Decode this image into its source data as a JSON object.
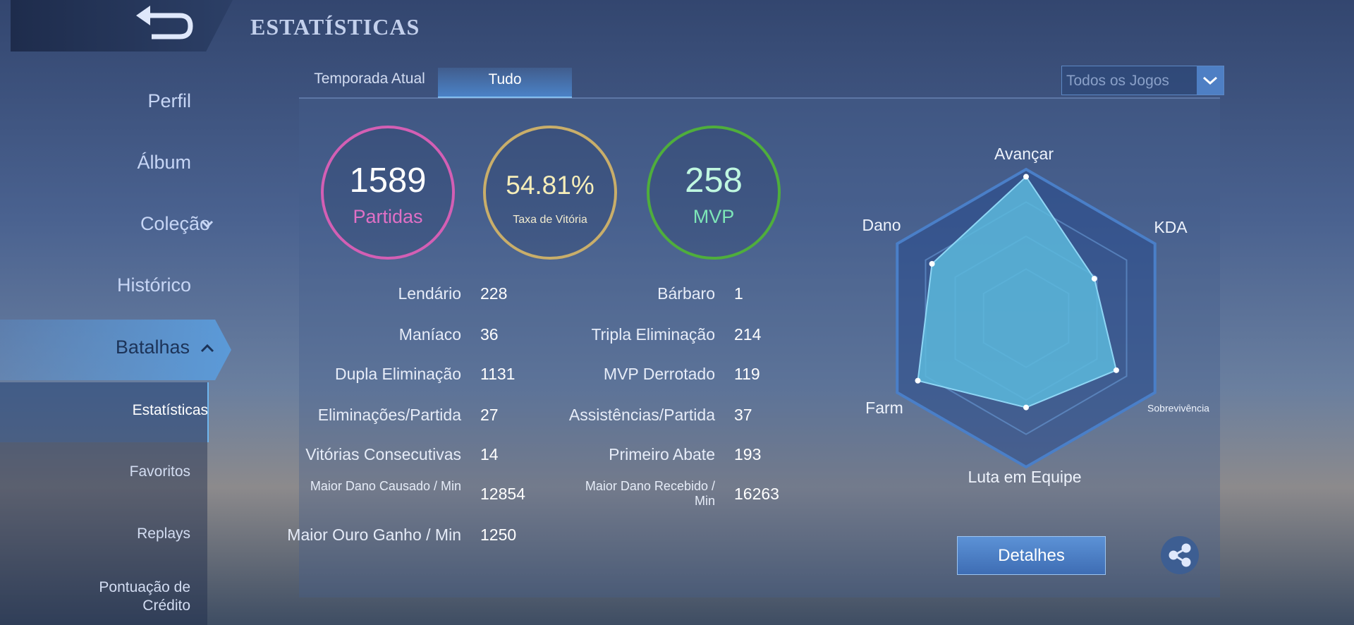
{
  "header": {
    "title": "ESTATÍSTICAS"
  },
  "sidebar": {
    "items": [
      "Perfil",
      "Álbum",
      "Coleção",
      "Histórico",
      "Batalhas"
    ],
    "subitems": [
      "Estatísticas",
      "Favoritos",
      "Replays",
      "Pontuação de Crédito"
    ]
  },
  "tabs": [
    "Temporada Atual",
    "Tudo"
  ],
  "filter": "Todos os Jogos",
  "summary": [
    {
      "value": 1589,
      "label": "Partidas"
    },
    {
      "value": "54.81%",
      "label": "Taxa de Vitória"
    },
    {
      "value": 258,
      "label": "MVP"
    }
  ],
  "stats": {
    "left": [
      {
        "label": "Lendário",
        "value": 228
      },
      {
        "label": "Maníaco",
        "value": 36
      },
      {
        "label": "Dupla Eliminação",
        "value": 1131
      },
      {
        "label": "Eliminações/Partida",
        "value": 27
      },
      {
        "label": "Vitórias Consecutivas",
        "value": 14
      },
      {
        "label": "Maior Dano Causado / Min",
        "value": 12854
      },
      {
        "label": "Maior Ouro Ganho / Min",
        "value": 1250
      }
    ],
    "right": [
      {
        "label": "Bárbaro",
        "value": 1
      },
      {
        "label": "Tripla Eliminação",
        "value": 214
      },
      {
        "label": "MVP Derrotado",
        "value": 119
      },
      {
        "label": "Assistências/Partida",
        "value": 37
      },
      {
        "label": "Primeiro Abate",
        "value": 193
      },
      {
        "label": "Maior Dano Recebido / Min",
        "value": 16263
      }
    ]
  },
  "chart_data": {
    "type": "radar",
    "categories": [
      "Avançar",
      "KDA",
      "Sobrevivência",
      "Luta em Equipe",
      "Farm",
      "Dano"
    ],
    "values": [
      0.95,
      0.53,
      0.7,
      0.6,
      0.84,
      0.73
    ],
    "rlim": [
      0,
      1
    ],
    "color": "#5cb8dc"
  },
  "buttons": {
    "details": "Detalhes"
  }
}
